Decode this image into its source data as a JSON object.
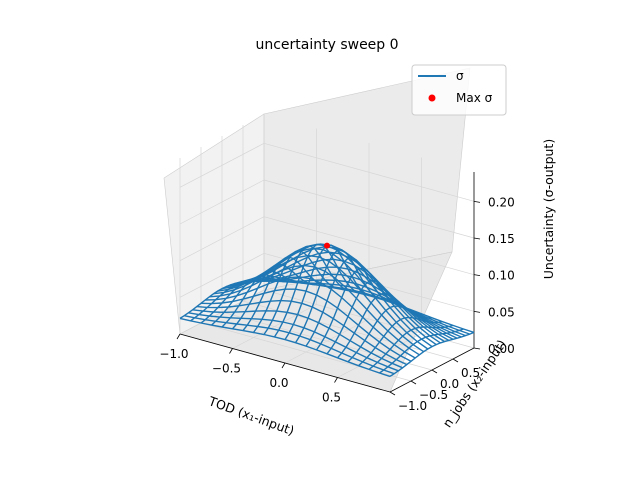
{
  "chart_data": {
    "type": "surface3d",
    "title": "uncertainty sweep 0",
    "xlabel": "TOD (x₁-input)",
    "ylabel": "n_jobs (x₂-input)",
    "zlabel": "Uncertainty (σ-output)",
    "x_ticks": [
      "−1.0",
      "−0.5",
      "0.0",
      "0.5"
    ],
    "y_ticks": [
      "−1.0",
      "−0.5",
      "0.0",
      "0.5"
    ],
    "z_ticks": [
      "0.00",
      "0.05",
      "0.10",
      "0.15",
      "0.20"
    ],
    "xlim": [
      -1.0,
      1.0
    ],
    "ylim": [
      -1.0,
      1.0
    ],
    "zlim": [
      0.0,
      0.24
    ],
    "grid": true,
    "legend_position": "top-right",
    "legend": [
      {
        "label": "σ",
        "marker": "line",
        "color": "#1f77b4"
      },
      {
        "label": "Max σ",
        "marker": "dot",
        "color": "#ff0000"
      }
    ],
    "surface": {
      "name": "σ",
      "color": "#1f77b4",
      "grid_lines": 21,
      "x_range": [
        -1.0,
        1.0
      ],
      "y_range": [
        -1.0,
        1.0
      ],
      "model": "sigma(x,y) = 0.13*exp(-((x-0.0)^2+(y-0.0)^2)/0.5)",
      "peak_value": 0.13,
      "edge_value": 0.02
    },
    "max_point": {
      "name": "Max σ",
      "x": 0.0,
      "y": 0.0,
      "z": 0.13,
      "color": "#ff0000"
    }
  }
}
